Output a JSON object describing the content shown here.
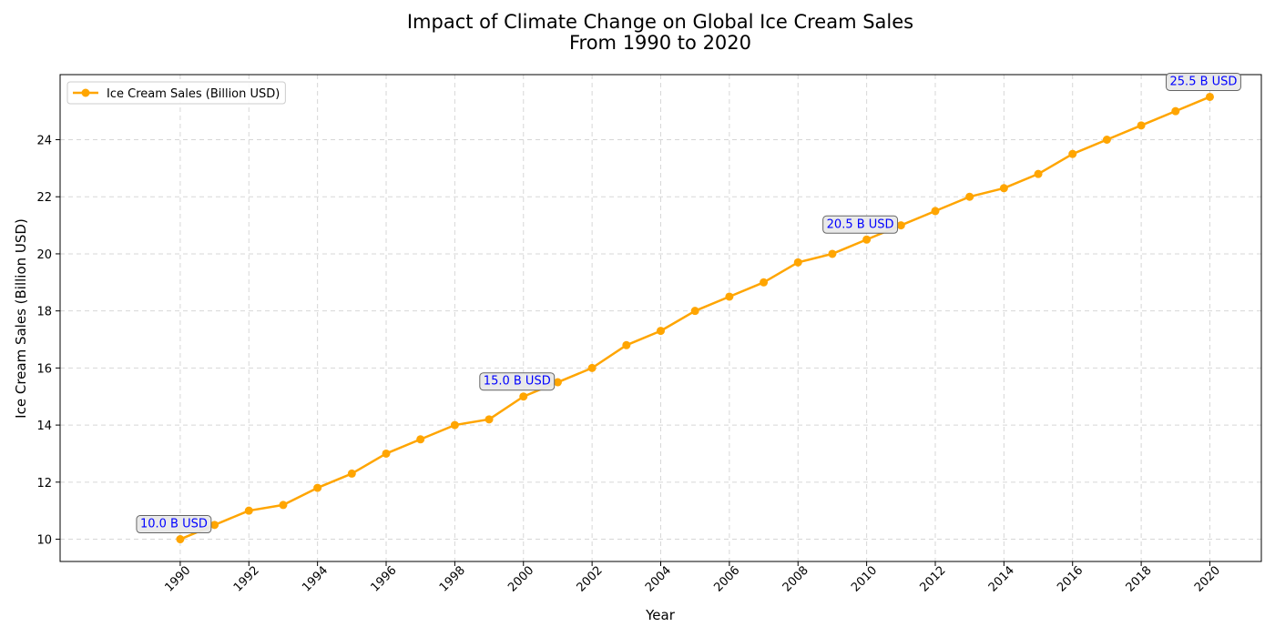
{
  "chart_data": {
    "type": "line",
    "title": "Impact of Climate Change on Global Ice Cream Sales\nFrom 1990 to 2020",
    "xlabel": "Year",
    "ylabel": "Ice Cream Sales (Billion USD)",
    "xlim": [
      1986.5,
      2021.5
    ],
    "ylim": [
      9.22,
      26.28
    ],
    "x_ticks": [
      1990,
      1992,
      1994,
      1996,
      1998,
      2000,
      2002,
      2004,
      2006,
      2008,
      2010,
      2012,
      2014,
      2016,
      2018,
      2020
    ],
    "y_ticks": [
      10,
      12,
      14,
      16,
      18,
      20,
      22,
      24
    ],
    "grid": true,
    "legend_position": "upper-left",
    "series": [
      {
        "name": "Ice Cream Sales (Billion USD)",
        "color": "#FFA500",
        "marker": "circle",
        "x": [
          1990,
          1991,
          1992,
          1993,
          1994,
          1995,
          1996,
          1997,
          1998,
          1999,
          2000,
          2001,
          2002,
          2003,
          2004,
          2005,
          2006,
          2007,
          2008,
          2009,
          2010,
          2011,
          2012,
          2013,
          2014,
          2015,
          2016,
          2017,
          2018,
          2019,
          2020
        ],
        "y": [
          10.0,
          10.5,
          11.0,
          11.2,
          11.8,
          12.3,
          13.0,
          13.5,
          14.0,
          14.2,
          15.0,
          15.5,
          16.0,
          16.8,
          17.3,
          18.0,
          18.5,
          19.0,
          19.7,
          20.0,
          20.5,
          21.0,
          21.5,
          22.0,
          22.3,
          22.8,
          23.5,
          24.0,
          24.5,
          25.0,
          25.5
        ]
      }
    ],
    "annotations": [
      {
        "x": 1990,
        "y": 10.0,
        "text": "10.0 B USD"
      },
      {
        "x": 2000,
        "y": 15.0,
        "text": "15.0 B USD"
      },
      {
        "x": 2010,
        "y": 20.5,
        "text": "20.5 B USD"
      },
      {
        "x": 2020,
        "y": 25.5,
        "text": "25.5 B USD"
      }
    ],
    "annotation_text_color": "#0000FF",
    "annotation_box_color": "#E8E8E8"
  }
}
